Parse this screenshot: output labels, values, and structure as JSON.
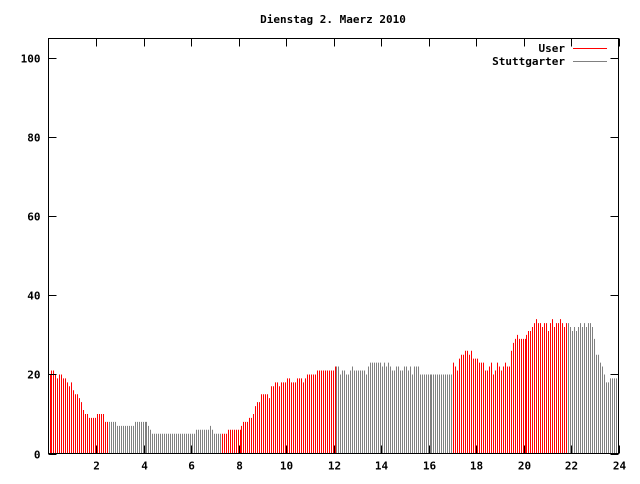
{
  "chart_data": {
    "type": "bar",
    "style": "impulses",
    "title": "Dienstag 2. Maerz 2010",
    "xlabel": "",
    "ylabel": "",
    "xlim": [
      0,
      24
    ],
    "ylim": [
      0,
      105
    ],
    "x_ticks": [
      2,
      4,
      6,
      8,
      10,
      12,
      14,
      16,
      18,
      20,
      22,
      24
    ],
    "y_ticks": [
      0,
      20,
      40,
      60,
      80,
      100
    ],
    "interval_minutes": 5,
    "legend_position": "top-right",
    "series": [
      {
        "name": "User",
        "color": "#ff0000"
      },
      {
        "name": "Stuttgarter",
        "color": "#808080"
      }
    ],
    "segments": [
      {
        "series": 0,
        "from_hour": 0,
        "to_hour": 2.5
      },
      {
        "series": 1,
        "from_hour": 2.5,
        "to_hour": 7.25
      },
      {
        "series": 0,
        "from_hour": 7.25,
        "to_hour": 12.083
      },
      {
        "series": 1,
        "from_hour": 12.083,
        "to_hour": 17.0
      },
      {
        "series": 0,
        "from_hour": 17.0,
        "to_hour": 21.833
      },
      {
        "series": 1,
        "from_hour": 21.833,
        "to_hour": 24
      }
    ],
    "values": [
      20,
      21,
      21,
      20,
      19,
      20,
      20,
      19,
      19,
      18,
      17,
      18,
      16,
      15,
      15,
      14,
      13,
      11,
      10,
      10,
      9,
      9,
      9,
      9,
      10,
      10,
      10,
      10,
      8,
      8,
      8,
      8,
      8,
      8,
      7,
      7,
      7,
      7,
      7,
      7,
      7,
      7,
      7,
      8,
      8,
      8,
      8,
      8,
      8,
      8,
      7,
      6,
      5,
      5,
      5,
      5,
      5,
      5,
      5,
      5,
      5,
      5,
      5,
      5,
      5,
      5,
      5,
      5,
      5,
      5,
      5,
      5,
      5,
      5,
      6,
      6,
      6,
      6,
      6,
      6,
      6,
      7,
      6,
      5,
      5,
      5,
      5,
      5,
      5,
      5,
      6,
      6,
      6,
      6,
      6,
      6,
      6,
      7,
      8,
      8,
      8,
      9,
      9,
      10,
      12,
      13,
      13,
      15,
      15,
      15,
      15,
      14,
      17,
      17,
      18,
      18,
      17,
      18,
      18,
      18,
      19,
      19,
      18,
      18,
      18,
      19,
      19,
      19,
      18,
      19,
      20,
      20,
      20,
      20,
      20,
      21,
      21,
      21,
      21,
      21,
      21,
      21,
      21,
      21,
      22,
      22,
      22,
      20,
      21,
      21,
      20,
      20,
      21,
      22,
      21,
      21,
      21,
      21,
      21,
      21,
      20,
      22,
      23,
      23,
      23,
      23,
      23,
      23,
      22,
      23,
      22,
      23,
      22,
      21,
      21,
      22,
      22,
      21,
      21,
      22,
      22,
      21,
      22,
      20,
      22,
      22,
      22,
      20,
      20,
      20,
      20,
      20,
      20,
      20,
      20,
      20,
      20,
      20,
      20,
      20,
      20,
      20,
      20,
      20,
      23,
      22,
      21,
      24,
      25,
      25,
      26,
      26,
      25,
      26,
      24,
      24,
      24,
      23,
      23,
      23,
      21,
      21,
      22,
      23,
      20,
      21,
      23,
      22,
      21,
      22,
      23,
      22,
      22,
      26,
      28,
      29,
      30,
      29,
      29,
      29,
      29,
      30,
      31,
      31,
      32,
      33,
      34,
      33,
      33,
      32,
      33,
      33,
      31,
      33,
      34,
      32,
      33,
      33,
      34,
      33,
      32,
      33,
      33,
      32,
      31,
      32,
      31,
      32,
      33,
      32,
      33,
      32,
      33,
      33,
      32,
      29,
      25,
      25,
      23,
      22,
      20,
      18,
      18,
      19,
      19,
      19,
      19,
      19
    ]
  }
}
